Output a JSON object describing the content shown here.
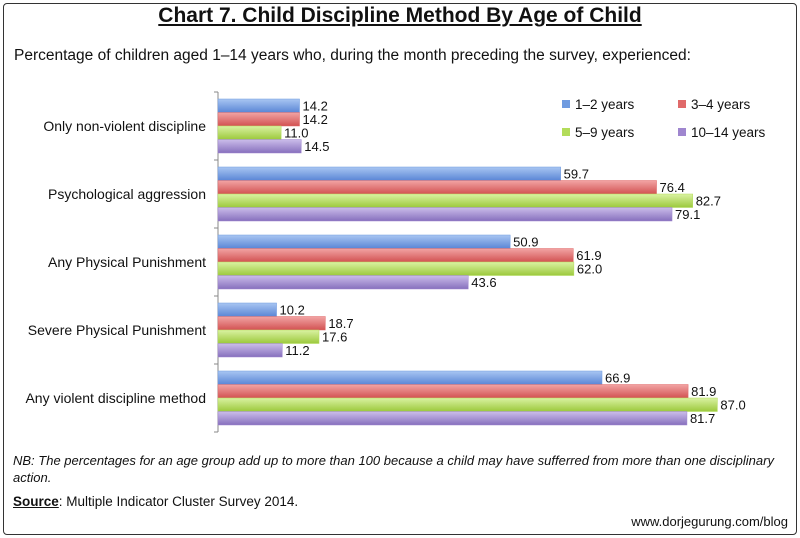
{
  "header": {
    "title": "Chart 7. Child Discipline Method By Age of Child",
    "subtitle": "Percentage of children aged 1–14 years who, during the month preceding the survey, experienced:"
  },
  "footer": {
    "note": "NB: The percentages for an age group add up to more than 100 because a child may have sufferred from more than one disciplinary action.",
    "source_label": "Source",
    "source_text": ": Multiple Indicator Cluster Survey 2014.",
    "blog": "www.dorjegurung.com/blog"
  },
  "chart_data": {
    "type": "bar",
    "orientation": "horizontal",
    "title": "Chart 7. Child Discipline Method By Age of Child",
    "xlim": [
      0,
      100
    ],
    "grid": false,
    "legend_position": "top-right",
    "categories": [
      "Only non-violent discipline",
      "Psychological aggression",
      "Any Physical Punishment",
      "Severe Physical Punishment",
      "Any violent discipline method"
    ],
    "series": [
      {
        "name": "1–2 years",
        "color": "#6f9be0",
        "values": [
          14.2,
          59.7,
          50.9,
          10.2,
          66.9
        ]
      },
      {
        "name": "3–4 years",
        "color": "#e06a6a",
        "values": [
          14.2,
          76.4,
          61.9,
          18.7,
          81.9
        ]
      },
      {
        "name": "5–9 years",
        "color": "#b3dc5a",
        "values": [
          11.0,
          82.7,
          62.0,
          17.6,
          87.0
        ]
      },
      {
        "name": "10–14 years",
        "color": "#9f86cf",
        "values": [
          14.5,
          79.1,
          43.6,
          11.2,
          81.7
        ]
      }
    ]
  }
}
